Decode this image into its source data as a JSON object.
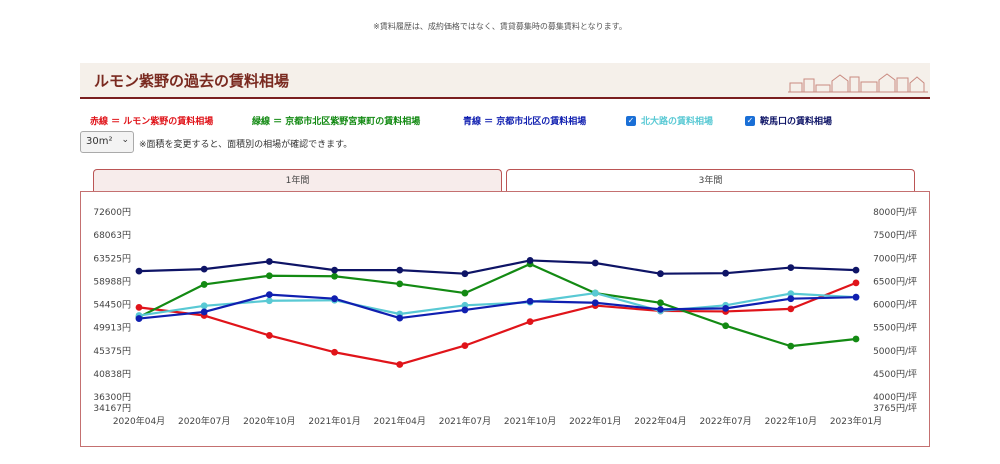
{
  "notice": "※賃料履歴は、成約価格ではなく、賃貸募集時の募集賃料となります。",
  "title": "ルモン紫野の過去の賃料相場",
  "legend": {
    "red": "赤線 ＝ ルモン紫野の賃料相場",
    "green": "緑線 ＝ 京都市北区紫野宮東町の賃料相場",
    "blue": "青線 ＝ 京都市北区の賃料相場",
    "kitaoji": "北大路の賃料相場",
    "kuramaguchi": "鞍馬口の賃料相場"
  },
  "size_select": {
    "value": "30m²"
  },
  "size_note": "※面積を変更すると、面積別の相場が確認できます。",
  "tabs": {
    "one_year": "1年間",
    "three_years": "3年間"
  },
  "colors": {
    "red": "#e0141a",
    "green": "#138a13",
    "blue": "#101fb0",
    "kitaoji": "#59c9d4",
    "kuramaguchi": "#0e1466"
  },
  "chart_data": {
    "type": "line",
    "categories": [
      "2020年04月",
      "2020年07月",
      "2020年10月",
      "2021年01月",
      "2021年04月",
      "2021年07月",
      "2021年10月",
      "2022年01月",
      "2022年04月",
      "2022年07月",
      "2022年10月",
      "2023年01月"
    ],
    "left_ticks": [
      "72600円",
      "68063円",
      "63525円",
      "58988円",
      "54450円",
      "49913円",
      "45375円",
      "40838円",
      "36300円",
      "34167円"
    ],
    "right_ticks": [
      "8000円/坪",
      "7500円/坪",
      "7000円/坪",
      "6500円/坪",
      "6000円/坪",
      "5500円/坪",
      "5000円/坪",
      "4500円/坪",
      "4000円/坪",
      "3765円/坪"
    ],
    "ylim": [
      34167,
      72600
    ],
    "series": [
      {
        "name": "赤線 ルモン紫野",
        "color": "#e0141a",
        "values": [
          53900,
          52300,
          48400,
          45100,
          42700,
          46400,
          51100,
          54250,
          53200,
          53100,
          53600,
          58700
        ]
      },
      {
        "name": "緑線 京都市北区紫野宮東町",
        "color": "#138a13",
        "values": [
          52000,
          58400,
          60100,
          60000,
          58500,
          56700,
          62400,
          56700,
          54800,
          50300,
          46300,
          47700
        ]
      },
      {
        "name": "北大路",
        "color": "#59c9d4",
        "values": [
          52300,
          54200,
          55200,
          55300,
          52600,
          54300,
          54900,
          56700,
          53200,
          54300,
          56600,
          55900
        ]
      },
      {
        "name": "青線 京都市北区",
        "color": "#101fb0",
        "values": [
          51700,
          53000,
          56400,
          55600,
          51800,
          53400,
          55100,
          54800,
          53500,
          53700,
          55600,
          55900
        ]
      },
      {
        "name": "鞍馬口",
        "color": "#0e1466",
        "values": [
          61000,
          61400,
          62900,
          61200,
          61200,
          60500,
          63100,
          62600,
          60500,
          60600,
          61700,
          61200
        ]
      }
    ]
  }
}
